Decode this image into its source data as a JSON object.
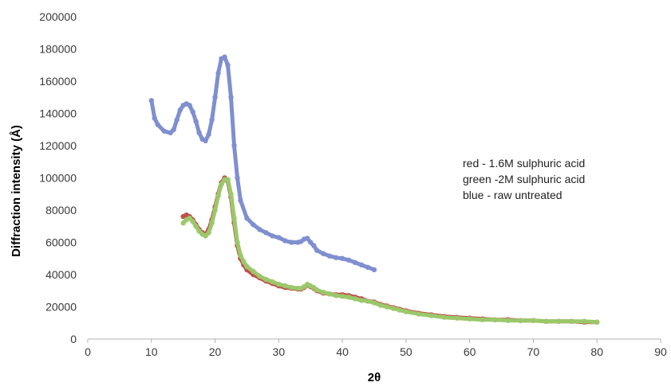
{
  "chart_data": {
    "type": "scatter",
    "xlabel": "2θ",
    "ylabel": "Diffraction intensity (Å)",
    "xlim": [
      0,
      90
    ],
    "ylim": [
      0,
      200000
    ],
    "xticks": [
      "0",
      "10",
      "20",
      "30",
      "40",
      "50",
      "60",
      "70",
      "80",
      "90"
    ],
    "yticks": [
      "0",
      "20000",
      "40000",
      "60000",
      "80000",
      "100000",
      "120000",
      "140000",
      "160000",
      "180000",
      "200000"
    ],
    "grid": false,
    "annotations": [
      "red - 1.6M sulphuric acid",
      "green -2M sulphuric acid",
      "blue - raw untreated"
    ],
    "series": [
      {
        "color": "#7f8fd0",
        "x": [
          10,
          10.5,
          11,
          12,
          13,
          13.5,
          14,
          14.5,
          15,
          15.5,
          16,
          16.5,
          17,
          17.5,
          18,
          18.5,
          19,
          19.5,
          20,
          20.5,
          21,
          21.5,
          22,
          22.5,
          23,
          23.5,
          24,
          25,
          26,
          27,
          28,
          29,
          30,
          31,
          32,
          33,
          33.5,
          34,
          34.5,
          35,
          35.5,
          36,
          37,
          38,
          39,
          40,
          41,
          42,
          43,
          44,
          45
        ],
        "y": [
          148000,
          137000,
          133000,
          129000,
          128000,
          130000,
          136000,
          142000,
          145000,
          146000,
          145000,
          141000,
          135000,
          128000,
          124000,
          123000,
          127000,
          136000,
          150000,
          165000,
          174000,
          175000,
          170000,
          150000,
          120000,
          100000,
          86000,
          75000,
          71000,
          68000,
          66000,
          64000,
          63000,
          61000,
          60000,
          60000,
          60500,
          62000,
          62500,
          60000,
          58000,
          55000,
          53000,
          51500,
          50500,
          50000,
          49000,
          47500,
          46000,
          44500,
          43000
        ]
      },
      {
        "color": "#c0504d",
        "x": [
          15,
          15.5,
          16,
          16.5,
          17,
          17.5,
          18,
          18.5,
          19,
          19.5,
          20,
          20.5,
          21,
          21.5,
          22,
          22.5,
          23,
          23.5,
          24,
          24.5,
          25,
          26,
          27,
          28,
          29,
          30,
          31,
          32,
          33,
          33.5,
          34,
          34.5,
          35,
          35.5,
          36,
          37,
          38,
          39,
          40,
          41,
          42,
          43,
          44,
          45,
          46,
          47,
          48,
          49,
          50,
          52,
          54,
          56,
          58,
          60,
          62,
          64,
          66,
          68,
          70,
          72,
          74,
          76,
          78,
          80
        ],
        "y": [
          76000,
          77000,
          76000,
          74000,
          71000,
          68000,
          66000,
          65000,
          68000,
          74000,
          82000,
          90000,
          97000,
          100000,
          98000,
          88000,
          72000,
          58000,
          50000,
          46000,
          43000,
          40000,
          38000,
          36000,
          34500,
          33000,
          32000,
          31500,
          31000,
          31000,
          32000,
          33500,
          32500,
          31500,
          30000,
          28500,
          28000,
          27500,
          27500,
          27000,
          26000,
          25000,
          23500,
          23000,
          21500,
          20500,
          19500,
          18500,
          17500,
          16000,
          15000,
          14000,
          13500,
          13000,
          12500,
          12000,
          12000,
          11500,
          11500,
          11000,
          11000,
          11000,
          10500,
          10500
        ]
      },
      {
        "color": "#9bc86a",
        "x": [
          15,
          15.5,
          16,
          16.5,
          17,
          17.5,
          18,
          18.5,
          19,
          19.5,
          20,
          20.5,
          21,
          21.5,
          22,
          22.5,
          23,
          23.5,
          24,
          24.5,
          25,
          26,
          27,
          28,
          29,
          30,
          31,
          32,
          33,
          33.5,
          34,
          34.5,
          35,
          35.5,
          36,
          37,
          38,
          39,
          40,
          41,
          42,
          43,
          44,
          45,
          46,
          47,
          48,
          49,
          50,
          52,
          54,
          56,
          58,
          60,
          62,
          64,
          66,
          68,
          70,
          72,
          74,
          76,
          78,
          80
        ],
        "y": [
          72000,
          74000,
          75000,
          73000,
          70000,
          67000,
          65000,
          64000,
          66000,
          72000,
          80000,
          89000,
          96000,
          99000,
          99000,
          90000,
          75000,
          60000,
          52000,
          48000,
          45000,
          42000,
          39000,
          37000,
          35500,
          34000,
          33000,
          32000,
          31500,
          31500,
          32500,
          34000,
          33000,
          32000,
          30500,
          29000,
          28000,
          27000,
          26500,
          26000,
          25000,
          24000,
          23500,
          22500,
          21000,
          20000,
          19000,
          18000,
          17000,
          15500,
          14500,
          13500,
          13000,
          12500,
          12000,
          12000,
          11500,
          11500,
          11500,
          11000,
          11000,
          11000,
          11000,
          10500
        ]
      }
    ]
  }
}
